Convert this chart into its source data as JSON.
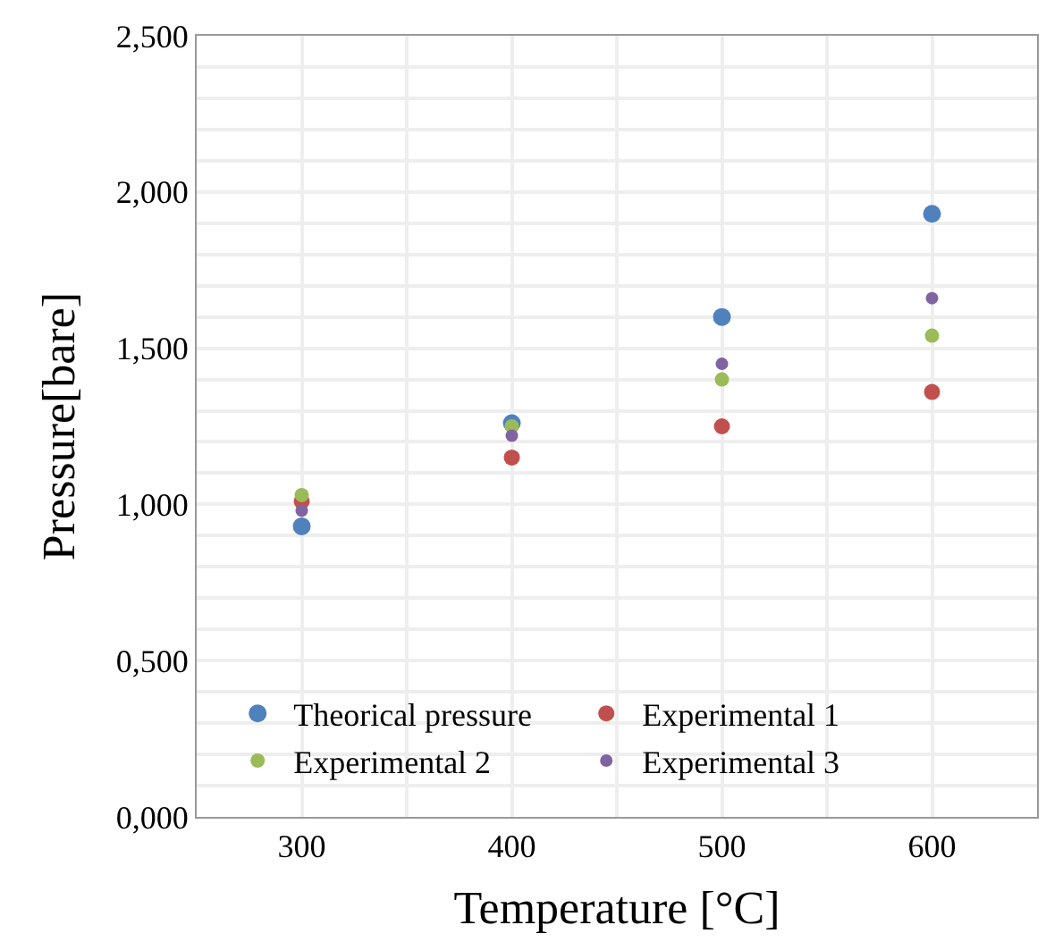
{
  "chart_data": {
    "type": "scatter",
    "xlabel": "Temperature [°C]",
    "ylabel": "Pressure[bare]",
    "x": [
      300,
      400,
      500,
      600
    ],
    "series": [
      {
        "name": "Theorical pressure",
        "color": "#4f81bd",
        "values": [
          0.93,
          1.26,
          1.6,
          1.93
        ]
      },
      {
        "name": "Experimental 1",
        "color": "#c0504d",
        "values": [
          1.01,
          1.15,
          1.25,
          1.36
        ]
      },
      {
        "name": "Experimental 2",
        "color": "#9bbb59",
        "values": [
          1.03,
          1.25,
          1.4,
          1.54
        ]
      },
      {
        "name": "Experimental 3",
        "color": "#8064a2",
        "values": [
          0.98,
          1.22,
          1.45,
          1.66
        ]
      }
    ],
    "xlim": [
      250,
      650
    ],
    "xticks": [
      300,
      400,
      500,
      600
    ],
    "ylim": [
      0,
      2.5
    ],
    "yticks": [
      {
        "value": 0,
        "label": "0,000"
      },
      {
        "value": 0.5,
        "label": "0,500"
      },
      {
        "value": 1,
        "label": "1,000"
      },
      {
        "value": 1.5,
        "label": "1,500"
      },
      {
        "value": 2,
        "label": "2,000"
      },
      {
        "value": 2.5,
        "label": "2,500"
      }
    ],
    "grid": true,
    "legend": "bottom",
    "marker": "circle"
  }
}
